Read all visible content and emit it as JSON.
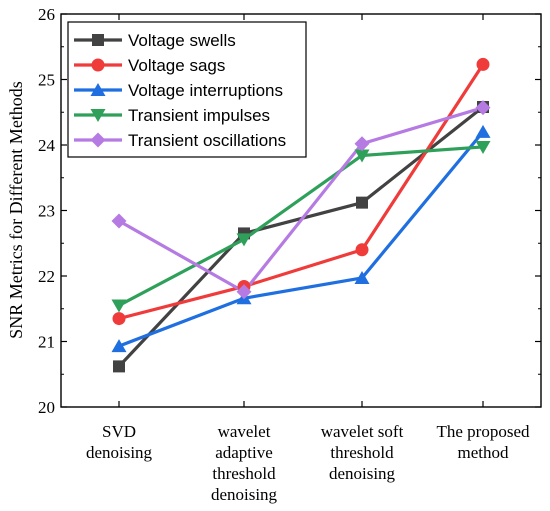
{
  "chart_data": {
    "type": "line",
    "ylabel": "SNR Metrics for Different Methods",
    "xlabel": "",
    "ylim": [
      20,
      26
    ],
    "yticks": [
      20,
      21,
      22,
      23,
      24,
      25,
      26
    ],
    "categories": [
      [
        "SVD",
        "denoising"
      ],
      [
        "wavelet",
        "adaptive",
        "threshold",
        "denoising"
      ],
      [
        "wavelet soft",
        "threshold",
        "denoising"
      ],
      [
        "The proposed",
        "method"
      ]
    ],
    "legend_position": "top-left",
    "grid": false,
    "series": [
      {
        "name": "Voltage swells",
        "color": "#424242",
        "marker": "square",
        "values": [
          20.62,
          22.65,
          23.12,
          24.58
        ]
      },
      {
        "name": "Voltage sags",
        "color": "#f03b3b",
        "marker": "circle",
        "values": [
          21.35,
          21.84,
          22.4,
          25.23
        ]
      },
      {
        "name": "Voltage interruptions",
        "color": "#1f6fe0",
        "marker": "triangle-up",
        "values": [
          20.93,
          21.66,
          21.97,
          24.2
        ]
      },
      {
        "name": "Transient impulses",
        "color": "#2ea05a",
        "marker": "triangle-down",
        "values": [
          21.55,
          22.56,
          23.84,
          23.97
        ]
      },
      {
        "name": "Transient oscillations",
        "color": "#b57be3",
        "marker": "diamond",
        "values": [
          22.84,
          21.76,
          24.02,
          24.57
        ]
      }
    ]
  }
}
